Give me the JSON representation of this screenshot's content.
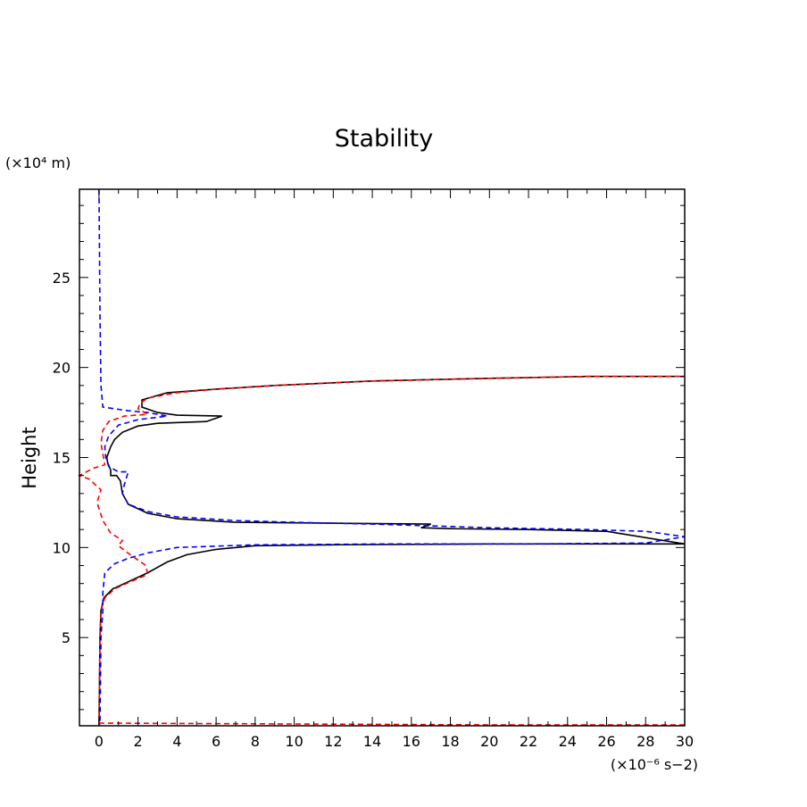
{
  "chart_data": {
    "type": "line",
    "title": "Stability",
    "xlabel": "",
    "ylabel": "Height",
    "x_unit_label": "(×10⁻⁶ s−2)",
    "y_unit_label": "(×10⁴ m)",
    "xlim": [
      -1,
      30
    ],
    "ylim": [
      0.1,
      29.9
    ],
    "x_ticks": [
      0,
      2,
      4,
      6,
      8,
      10,
      12,
      14,
      16,
      18,
      20,
      22,
      24,
      26,
      28,
      30
    ],
    "y_ticks": [
      5,
      10,
      15,
      20,
      25
    ],
    "grid": false,
    "legend": "none",
    "series": [
      {
        "color": "#000000",
        "dash": "solid",
        "points": [
          [
            0.0,
            0.1
          ],
          [
            0.05,
            5.0
          ],
          [
            0.1,
            6.5
          ],
          [
            0.25,
            7.2
          ],
          [
            0.7,
            7.7
          ],
          [
            1.5,
            8.1
          ],
          [
            2.5,
            8.6
          ],
          [
            3.5,
            9.2
          ],
          [
            4.5,
            9.6
          ],
          [
            6.0,
            9.9
          ],
          [
            8.0,
            10.1
          ],
          [
            12.0,
            10.15
          ],
          [
            20.0,
            10.2
          ],
          [
            30.0,
            10.2
          ],
          [
            26.0,
            10.9
          ],
          [
            22.0,
            11.0
          ],
          [
            18.0,
            11.05
          ],
          [
            16.5,
            11.1
          ],
          [
            17.0,
            11.3
          ],
          [
            12.0,
            11.35
          ],
          [
            7.0,
            11.4
          ],
          [
            4.0,
            11.6
          ],
          [
            2.5,
            11.9
          ],
          [
            1.5,
            12.4
          ],
          [
            1.2,
            13.0
          ],
          [
            1.1,
            13.7
          ],
          [
            0.9,
            14.0
          ],
          [
            0.6,
            14.0
          ],
          [
            0.6,
            14.3
          ],
          [
            0.45,
            14.7
          ],
          [
            0.4,
            15.0
          ],
          [
            0.6,
            15.6
          ],
          [
            0.8,
            16.0
          ],
          [
            1.2,
            16.4
          ],
          [
            2.0,
            16.75
          ],
          [
            3.0,
            16.9
          ],
          [
            5.5,
            17.0
          ],
          [
            6.3,
            17.3
          ],
          [
            4.0,
            17.35
          ],
          [
            3.0,
            17.5
          ],
          [
            2.2,
            17.8
          ],
          [
            2.2,
            18.2
          ],
          [
            3.5,
            18.6
          ],
          [
            6.0,
            18.8
          ],
          [
            9.0,
            19.0
          ],
          [
            14.0,
            19.25
          ],
          [
            20.0,
            19.4
          ],
          [
            25.0,
            19.5
          ],
          [
            30.0,
            19.5
          ]
        ]
      },
      {
        "color": "#0000ff",
        "dash": "dashed",
        "points": [
          [
            0.0,
            29.9
          ],
          [
            0.05,
            23.0
          ],
          [
            0.1,
            19.0
          ],
          [
            0.2,
            17.8
          ],
          [
            1.5,
            17.6
          ],
          [
            2.5,
            17.5
          ],
          [
            3.5,
            17.3
          ],
          [
            2.0,
            17.1
          ],
          [
            1.0,
            16.8
          ],
          [
            0.5,
            16.2
          ],
          [
            0.3,
            15.6
          ],
          [
            0.35,
            15.0
          ],
          [
            0.5,
            14.5
          ],
          [
            1.0,
            14.2
          ],
          [
            1.5,
            14.2
          ],
          [
            1.3,
            13.5
          ],
          [
            1.2,
            13.0
          ],
          [
            1.5,
            12.4
          ],
          [
            2.5,
            12.0
          ],
          [
            4.0,
            11.7
          ],
          [
            7.0,
            11.5
          ],
          [
            10.0,
            11.4
          ],
          [
            14.0,
            11.3
          ],
          [
            17.0,
            11.2
          ],
          [
            20.0,
            11.1
          ],
          [
            25.0,
            11.0
          ],
          [
            28.0,
            10.9
          ],
          [
            30.0,
            10.6
          ],
          [
            28.0,
            10.25
          ],
          [
            22.0,
            10.2
          ],
          [
            15.0,
            10.2
          ],
          [
            8.0,
            10.15
          ],
          [
            4.0,
            10.0
          ],
          [
            2.5,
            9.7
          ],
          [
            1.5,
            9.4
          ],
          [
            0.8,
            9.1
          ],
          [
            0.3,
            8.6
          ],
          [
            0.2,
            7.5
          ],
          [
            0.2,
            6.5
          ],
          [
            0.1,
            5.0
          ],
          [
            0.05,
            0.15
          ]
        ]
      },
      {
        "color": "#ff0000",
        "dash": "dashed",
        "points": [
          [
            0.0,
            0.1
          ],
          [
            0.05,
            5.0
          ],
          [
            0.1,
            6.5
          ],
          [
            0.3,
            7.2
          ],
          [
            0.8,
            7.7
          ],
          [
            1.6,
            8.1
          ],
          [
            2.5,
            8.5
          ],
          [
            2.4,
            9.0
          ],
          [
            1.6,
            9.6
          ],
          [
            1.0,
            10.1
          ],
          [
            1.2,
            10.4
          ],
          [
            0.6,
            10.8
          ],
          [
            0.2,
            11.5
          ],
          [
            -0.1,
            12.5
          ],
          [
            0.1,
            13.2
          ],
          [
            -0.5,
            13.8
          ],
          [
            -1.0,
            14.0
          ],
          [
            -0.3,
            14.4
          ],
          [
            0.3,
            14.6
          ],
          [
            0.2,
            15.2
          ],
          [
            0.1,
            15.8
          ],
          [
            0.2,
            16.5
          ],
          [
            0.5,
            17.0
          ],
          [
            1.3,
            17.3
          ],
          [
            2.5,
            17.4
          ],
          [
            2.0,
            17.7
          ],
          [
            2.1,
            18.0
          ],
          [
            2.5,
            18.3
          ],
          [
            4.0,
            18.6
          ],
          [
            6.0,
            18.8
          ],
          [
            9.0,
            19.0
          ],
          [
            14.0,
            19.25
          ],
          [
            20.0,
            19.4
          ],
          [
            25.0,
            19.5
          ],
          [
            30.0,
            19.5
          ]
        ]
      },
      {
        "color": "#ff0000",
        "dash": "dashed",
        "points": [
          [
            0.0,
            0.25
          ],
          [
            10.0,
            0.2
          ],
          [
            20.0,
            0.15
          ],
          [
            30.0,
            0.15
          ]
        ]
      }
    ]
  }
}
